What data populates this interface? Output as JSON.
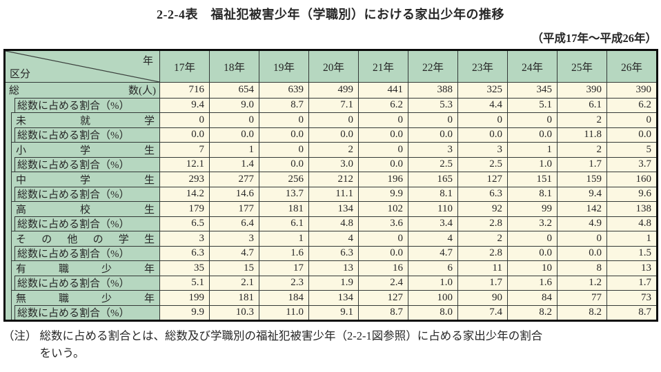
{
  "title": "2-2-4表　福祉犯被害少年（学職別）における家出少年の推移",
  "subtitle": "（平成17年～平成26年）",
  "table": {
    "corner": {
      "top_right": "年",
      "bottom_left": "区分"
    },
    "years": [
      "17年",
      "18年",
      "19年",
      "20年",
      "21年",
      "22年",
      "23年",
      "24年",
      "25年",
      "26年"
    ],
    "rows": [
      {
        "type": "total",
        "label": "総数(人)",
        "chars": [
          "総",
          "数(人)"
        ],
        "values": [
          "716",
          "654",
          "639",
          "499",
          "441",
          "388",
          "325",
          "345",
          "390",
          "390"
        ]
      },
      {
        "type": "ratio0",
        "label": "総数に占める割合（%）",
        "values": [
          "9.4",
          "9.0",
          "8.7",
          "7.1",
          "6.2",
          "5.3",
          "4.4",
          "5.1",
          "6.1",
          "6.2"
        ]
      },
      {
        "type": "category",
        "label": "未就学",
        "chars": [
          "未",
          "就",
          "学"
        ],
        "values": [
          "0",
          "0",
          "0",
          "0",
          "0",
          "0",
          "0",
          "0",
          "2",
          "0"
        ]
      },
      {
        "type": "ratio",
        "label": "総数に占める割合（%）",
        "values": [
          "0.0",
          "0.0",
          "0.0",
          "0.0",
          "0.0",
          "0.0",
          "0.0",
          "0.0",
          "11.8",
          "0.0"
        ]
      },
      {
        "type": "category",
        "label": "小学生",
        "chars": [
          "小",
          "学",
          "生"
        ],
        "values": [
          "7",
          "1",
          "0",
          "2",
          "0",
          "3",
          "3",
          "1",
          "2",
          "5"
        ]
      },
      {
        "type": "ratio",
        "label": "総数に占める割合（%）",
        "values": [
          "12.1",
          "1.4",
          "0.0",
          "3.0",
          "0.0",
          "2.5",
          "2.5",
          "1.0",
          "1.7",
          "3.7"
        ]
      },
      {
        "type": "category",
        "label": "中学生",
        "chars": [
          "中",
          "学",
          "生"
        ],
        "values": [
          "293",
          "277",
          "256",
          "212",
          "196",
          "165",
          "127",
          "151",
          "159",
          "160"
        ]
      },
      {
        "type": "ratio",
        "label": "総数に占める割合（%）",
        "values": [
          "14.2",
          "14.6",
          "13.7",
          "11.1",
          "9.9",
          "8.1",
          "6.3",
          "8.1",
          "9.4",
          "9.6"
        ]
      },
      {
        "type": "category",
        "label": "高校生",
        "chars": [
          "高",
          "校",
          "生"
        ],
        "values": [
          "179",
          "177",
          "181",
          "134",
          "102",
          "110",
          "92",
          "99",
          "142",
          "138"
        ]
      },
      {
        "type": "ratio",
        "label": "総数に占める割合（%）",
        "values": [
          "6.5",
          "6.4",
          "6.1",
          "4.8",
          "3.6",
          "3.4",
          "2.8",
          "3.2",
          "4.9",
          "4.8"
        ]
      },
      {
        "type": "category",
        "label": "その他の学生",
        "chars": [
          "そ",
          "の",
          "他",
          "の",
          "学",
          "生"
        ],
        "values": [
          "3",
          "3",
          "1",
          "4",
          "0",
          "4",
          "2",
          "0",
          "0",
          "1"
        ]
      },
      {
        "type": "ratio",
        "label": "総数に占める割合（%）",
        "values": [
          "6.3",
          "4.7",
          "1.6",
          "6.3",
          "0.0",
          "4.7",
          "2.8",
          "0.0",
          "0.0",
          "1.5"
        ]
      },
      {
        "type": "category",
        "label": "有職少年",
        "chars": [
          "有",
          "職",
          "少",
          "年"
        ],
        "values": [
          "35",
          "15",
          "17",
          "13",
          "16",
          "6",
          "11",
          "10",
          "8",
          "13"
        ]
      },
      {
        "type": "ratio",
        "label": "総数に占める割合（%）",
        "values": [
          "5.1",
          "2.1",
          "2.3",
          "1.9",
          "2.4",
          "1.0",
          "1.7",
          "1.6",
          "1.2",
          "1.7"
        ]
      },
      {
        "type": "category",
        "label": "無職少年",
        "chars": [
          "無",
          "職",
          "少",
          "年"
        ],
        "values": [
          "199",
          "181",
          "184",
          "134",
          "127",
          "100",
          "90",
          "84",
          "77",
          "73"
        ]
      },
      {
        "type": "ratio",
        "label": "総数に占める割合（%）",
        "values": [
          "9.9",
          "10.3",
          "11.0",
          "9.1",
          "8.7",
          "8.0",
          "7.4",
          "8.2",
          "8.2",
          "8.7"
        ]
      }
    ]
  },
  "note": {
    "label": "（注）",
    "line1": "総数に占める割合とは、総数及び学職別の福祉犯被害少年（2-2-1図参照）に占める家出少年の割合",
    "line2": "をいう。"
  }
}
